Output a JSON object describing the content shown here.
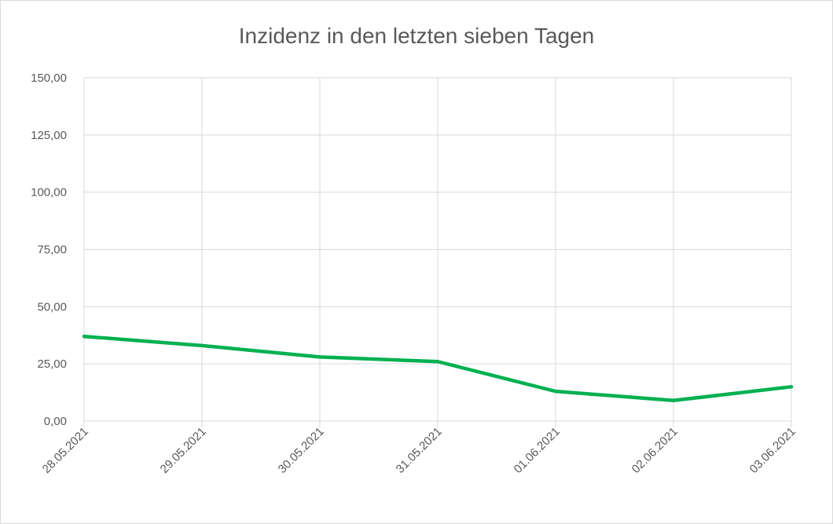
{
  "chart_data": {
    "type": "line",
    "title": "Inzidenz in den letzten sieben Tagen",
    "xlabel": "",
    "ylabel": "",
    "categories": [
      "28.05.2021",
      "29.05.2021",
      "30.05.2021",
      "31.05.2021",
      "01.06.2021",
      "02.06.2021",
      "03.06.2021"
    ],
    "y_ticks": [
      "0,00",
      "25,00",
      "50,00",
      "75,00",
      "100,00",
      "125,00",
      "150,00"
    ],
    "ylim": [
      0,
      150
    ],
    "grid": true,
    "legend": "none",
    "series": [
      {
        "values": [
          37.0,
          33.0,
          28.0,
          26.0,
          13.0,
          9.0,
          15.0
        ],
        "color": "#00b050"
      }
    ]
  }
}
